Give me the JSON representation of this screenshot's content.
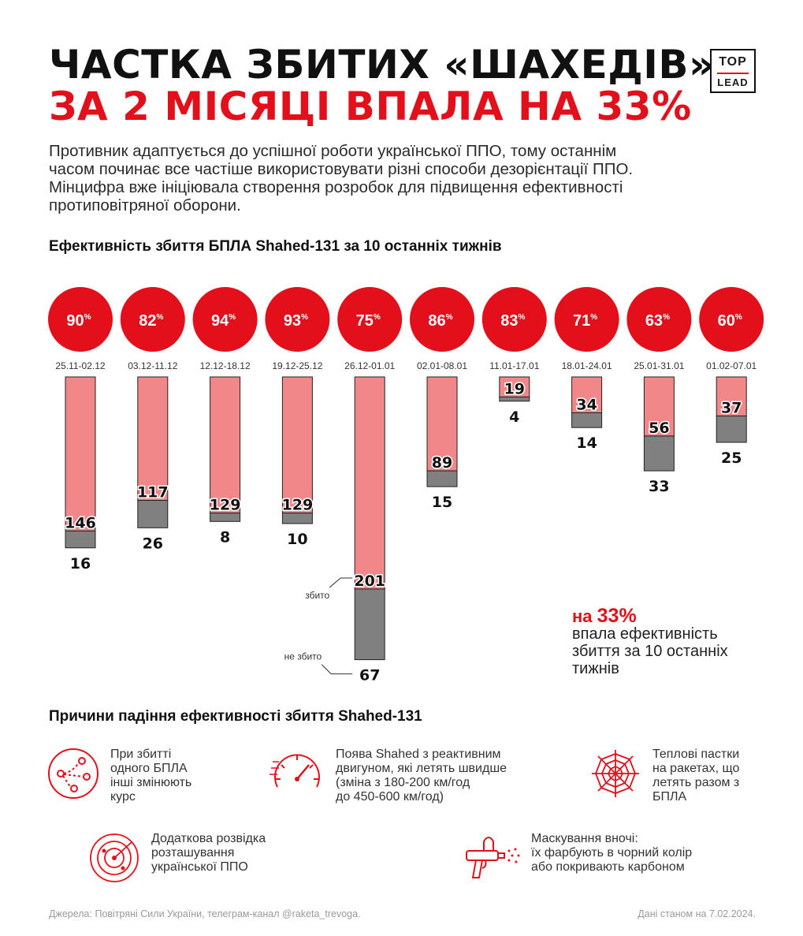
{
  "header": {
    "title_line1": "ЧАСТКА ЗБИТИХ «ШАХЕДІВ»",
    "title_line2": "ЗА 2 МІСЯЦІ ВПАЛА НА 33%",
    "logo_top": "TOP",
    "logo_bottom": "LEAD"
  },
  "intro": {
    "lines": [
      "Противник адаптується до успішної роботи української ППО, тому останнім",
      "часом починає все частіше використовувати різні способи дезорієнтації ППО.",
      "Мінцифра вже ініціювала створення розробок для підвищення ефективності",
      "протиповітряної оборони."
    ]
  },
  "chart_data": {
    "type": "bar",
    "title": "Ефективність збиття БПЛА Shahed-131 за 10 останніх тижнів",
    "categories": [
      "25.11-02.12",
      "03.12-11.12",
      "12.12-18.12",
      "19.12-25.12",
      "26.12-01.01",
      "02.01-08.01",
      "11.01-17.01",
      "18.01-24.01",
      "25.01-31.01",
      "01.02-07.01"
    ],
    "percent_labels": [
      "90%",
      "82%",
      "94%",
      "93%",
      "75%",
      "86%",
      "83%",
      "71%",
      "63%",
      "60%"
    ],
    "percent_values": [
      90,
      82,
      94,
      93,
      75,
      86,
      83,
      71,
      63,
      60
    ],
    "series": [
      {
        "name": "збито",
        "values": [
          146,
          117,
          129,
          129,
          201,
          89,
          19,
          34,
          56,
          37
        ],
        "color": "#f2878a"
      },
      {
        "name": "не збито",
        "values": [
          16,
          26,
          8,
          10,
          67,
          15,
          4,
          14,
          33,
          25
        ],
        "color": "#808080"
      }
    ],
    "legend": [
      "збито",
      "не збито"
    ],
    "stacked": true,
    "orientation": "downward"
  },
  "callout": {
    "prefix": "на ",
    "value": "33%",
    "lines": [
      "впала ефективність",
      "збиття за 10 останніх",
      "тижнів"
    ]
  },
  "reasons": {
    "title": "Причини падіння ефективності збиття Shahed-131",
    "items": [
      {
        "icon": "route-change-icon",
        "lines": [
          "При збитті",
          "одного БПЛА",
          "інші змінюють",
          "курс"
        ]
      },
      {
        "icon": "speedometer-icon",
        "lines": [
          "Поява Shahed з реактивним",
          "двигуном, які летять швидше",
          "(зміна з 180-200 км/год",
          "до 450-600 км/год)"
        ]
      },
      {
        "icon": "spider-web-icon",
        "lines": [
          "Теплові пастки",
          "на ракетах, що",
          "летять разом з",
          "БПЛА"
        ]
      },
      {
        "icon": "radar-icon",
        "lines": [
          "Додаткова розвідка",
          "розташування",
          "української ППО"
        ]
      },
      {
        "icon": "spray-gun-icon",
        "lines": [
          "Маскування вночі:",
          "їх фарбують в чорний колір",
          "або покривають карбоном"
        ]
      }
    ]
  },
  "footer": {
    "sources": "Джерела: Повітряні Сили України, телеграм-канал @raketa_trevoga.",
    "date": "Дані станом на 7.02.2024."
  },
  "colors": {
    "accent": "#e3101b",
    "shot_down": "#f2878a",
    "not_shot_down": "#808080"
  }
}
